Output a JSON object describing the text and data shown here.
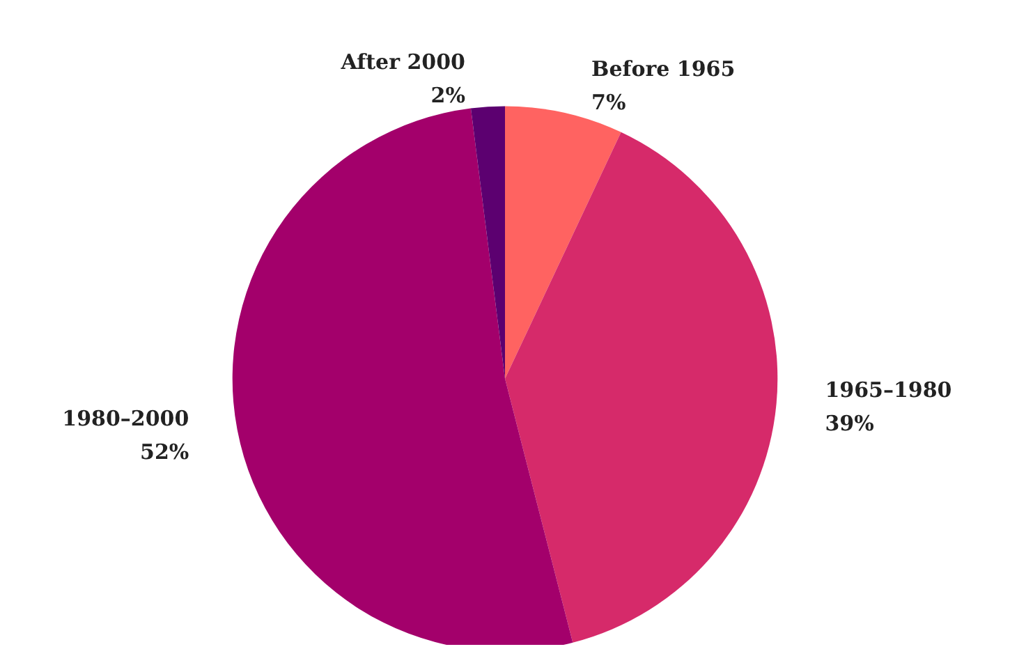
{
  "chart_data": {
    "type": "pie",
    "categories": [
      "Before 1965",
      "1965–1980",
      "1980–2000",
      "After 2000"
    ],
    "values": [
      7,
      39,
      52,
      2
    ],
    "value_labels": [
      "7%",
      "39%",
      "52%",
      "2%"
    ],
    "colors": [
      "#ff6361",
      "#d62a6a",
      "#a3006b",
      "#5c0070"
    ],
    "legend": false
  }
}
